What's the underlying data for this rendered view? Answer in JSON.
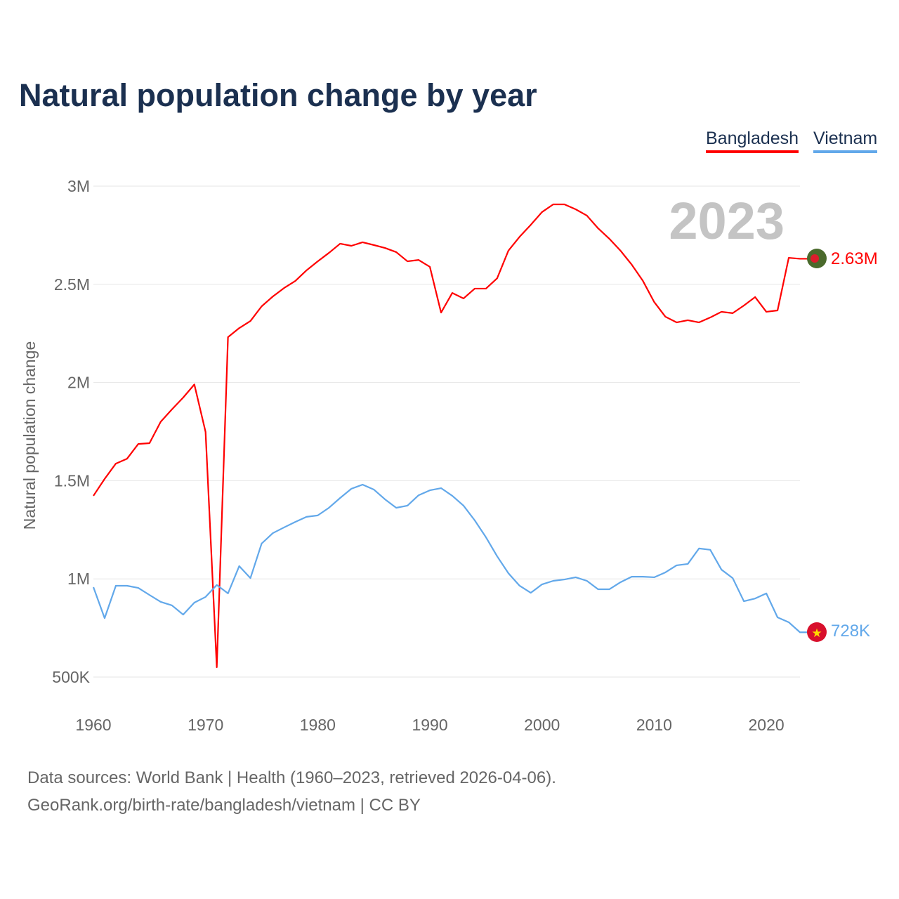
{
  "title": "Natural population change by year",
  "legend": [
    {
      "label": "Bangladesh",
      "color": "#ff0000"
    },
    {
      "label": "Vietnam",
      "color": "#62a8ea"
    }
  ],
  "year_watermark": "2023",
  "end_labels": {
    "bangladesh": "2.63M",
    "vietnam": "728K"
  },
  "flag_icons": {
    "bangladesh": "bangladesh-flag-icon",
    "vietnam": "vietnam-flag-icon"
  },
  "source_line1": "Data sources: World Bank | Health (1960–2023, retrieved 2026-04-06).",
  "source_line2": "GeoRank.org/birth-rate/bangladesh/vietnam | CC BY",
  "chart_data": {
    "type": "line",
    "title": "Natural population change by year",
    "xlabel": "",
    "ylabel": "Natural population change",
    "xlim": [
      1960,
      2023
    ],
    "ylim": [
      500000,
      3000000
    ],
    "x_ticks": [
      1960,
      1970,
      1980,
      1990,
      2000,
      2010,
      2020
    ],
    "x_tick_labels": [
      "1960",
      "1970",
      "1980",
      "1990",
      "2000",
      "2010",
      "2020"
    ],
    "y_ticks": [
      500000,
      1000000,
      1500000,
      2000000,
      2500000,
      3000000
    ],
    "y_tick_labels": [
      "500K",
      "1M",
      "1.5M",
      "2M",
      "2.5M",
      "3M"
    ],
    "grid": true,
    "legend_position": "top-right",
    "x_start": 1960,
    "series": [
      {
        "name": "Bangladesh",
        "color": "#ff0000",
        "values_millions": [
          1.423,
          1.509,
          1.587,
          1.612,
          1.687,
          1.691,
          1.8,
          1.863,
          1.923,
          1.99,
          1.748,
          0.55,
          2.231,
          2.277,
          2.313,
          2.388,
          2.438,
          2.481,
          2.517,
          2.571,
          2.617,
          2.66,
          2.707,
          2.696,
          2.714,
          2.7,
          2.685,
          2.664,
          2.617,
          2.624,
          2.589,
          2.356,
          2.456,
          2.428,
          2.478,
          2.478,
          2.531,
          2.671,
          2.742,
          2.803,
          2.868,
          2.907,
          2.907,
          2.882,
          2.85,
          2.785,
          2.732,
          2.671,
          2.6,
          2.517,
          2.41,
          2.335,
          2.306,
          2.317,
          2.306,
          2.331,
          2.36,
          2.353,
          2.392,
          2.435,
          2.36,
          2.367,
          2.635,
          2.63
        ]
      },
      {
        "name": "Vietnam",
        "color": "#62a8ea",
        "values_millions": [
          0.958,
          0.8,
          0.965,
          0.965,
          0.954,
          0.918,
          0.883,
          0.865,
          0.818,
          0.879,
          0.908,
          0.969,
          0.926,
          1.065,
          1.004,
          1.18,
          1.233,
          1.262,
          1.29,
          1.316,
          1.323,
          1.362,
          1.412,
          1.459,
          1.48,
          1.455,
          1.405,
          1.362,
          1.373,
          1.426,
          1.451,
          1.462,
          1.423,
          1.373,
          1.298,
          1.212,
          1.115,
          1.029,
          0.965,
          0.929,
          0.972,
          0.99,
          0.997,
          1.008,
          0.99,
          0.947,
          0.947,
          0.983,
          1.011,
          1.011,
          1.008,
          1.033,
          1.069,
          1.076,
          1.155,
          1.148,
          1.047,
          1.004,
          0.886,
          0.9,
          0.926,
          0.804,
          0.779,
          0.728
        ]
      }
    ]
  }
}
